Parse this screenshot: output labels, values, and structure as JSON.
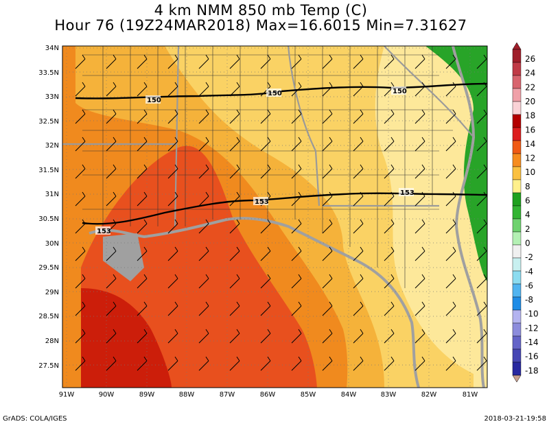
{
  "title_line1": "4 km NMM 850 mb Temp (C)",
  "title_line2": "Hour 76 (19Z24MAR2018) Max=16.6015 Min=7.31627",
  "footer_left": "GrADS: COLA/IGES",
  "footer_right": "2018-03-21-19:58",
  "lat_labels": [
    "34N",
    "33.5N",
    "33N",
    "32.5N",
    "32N",
    "31.5N",
    "31N",
    "30.5N",
    "30N",
    "29.5N",
    "29N",
    "28.5N",
    "28N",
    "27.5N"
  ],
  "lon_labels": [
    "91W",
    "90W",
    "89W",
    "88W",
    "87W",
    "86W",
    "85W",
    "84W",
    "83W",
    "82W",
    "81W"
  ],
  "colorbar": {
    "labels": [
      "26",
      "24",
      "22",
      "20",
      "18",
      "16",
      "14",
      "12",
      "10",
      "8",
      "6",
      "4",
      "2",
      "0",
      "-2",
      "-4",
      "-6",
      "-8",
      "-10",
      "-12",
      "-14",
      "-16",
      "-18"
    ],
    "colors": [
      "#a01e2a",
      "#c03a46",
      "#d8646e",
      "#f0a0a8",
      "#fad2d6",
      "#b40000",
      "#dc1e1e",
      "#f05a14",
      "#f68c1e",
      "#fac040",
      "#fff08c",
      "#1ea01e",
      "#32b432",
      "#6ed26e",
      "#b4f0b4",
      "#f0f0f0",
      "#c8f0f0",
      "#8cdcf0",
      "#50b4f0",
      "#1e8ce6",
      "#b4b4f0",
      "#8c8cdc",
      "#6464c8",
      "#4646b4",
      "#2828a0"
    ]
  },
  "map": {
    "height_contour_labels": [
      "150",
      "150",
      "150",
      "153",
      "153",
      "153"
    ],
    "colors": {
      "deep_red": "#cc1e0a",
      "red_orange": "#e8501e",
      "orange": "#f08a1e",
      "light_orange": "#f5b23a",
      "gold": "#fad264",
      "pale_yellow": "#fde89a",
      "green": "#28a428",
      "coast_gray": "#a0a0a0"
    }
  }
}
